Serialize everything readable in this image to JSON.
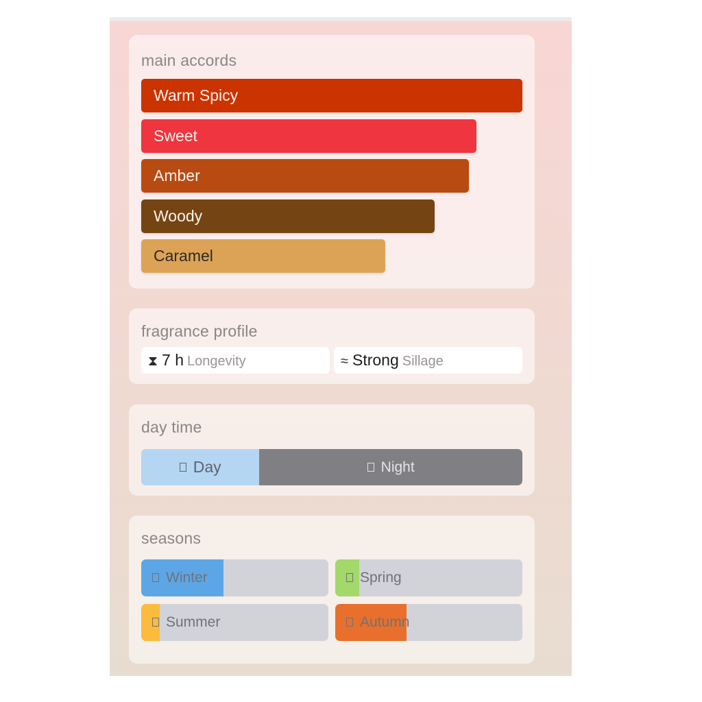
{
  "accords": {
    "title": "main accords",
    "items": [
      {
        "label": "Warm Spicy",
        "color": "#cb3300",
        "text_color": "#fdf2ec",
        "strength": 1.0
      },
      {
        "label": "Sweet",
        "color": "#ee3540",
        "text_color": "#fdf2ec",
        "strength": 0.88
      },
      {
        "label": "Amber",
        "color": "#b84b12",
        "text_color": "#fdf2ec",
        "strength": 0.86
      },
      {
        "label": "Woody",
        "color": "#744413",
        "text_color": "#fdf2ec",
        "strength": 0.77
      },
      {
        "label": "Caramel",
        "color": "#dca357",
        "text_color": "#2d2a26",
        "strength": 0.64
      }
    ]
  },
  "profile": {
    "title": "fragrance profile",
    "longevity": {
      "icon": "hourglass-icon",
      "value": "7 h",
      "label": "Longevity"
    },
    "sillage": {
      "icon": "waves-icon",
      "value": "Strong",
      "label": "Sillage"
    }
  },
  "daytime": {
    "title": "day time",
    "day_label": "Day",
    "night_label": "Night",
    "day_fraction": 0.31
  },
  "seasons": {
    "title": "seasons",
    "items": [
      {
        "label": "Winter",
        "color": "#5da6e6",
        "fraction": 0.44
      },
      {
        "label": "Spring",
        "color": "#a3d86a",
        "fraction": 0.13
      },
      {
        "label": "Summer",
        "color": "#fbbb3d",
        "fraction": 0.1
      },
      {
        "label": "Autumn",
        "color": "#e8702c",
        "fraction": 0.38
      }
    ]
  }
}
